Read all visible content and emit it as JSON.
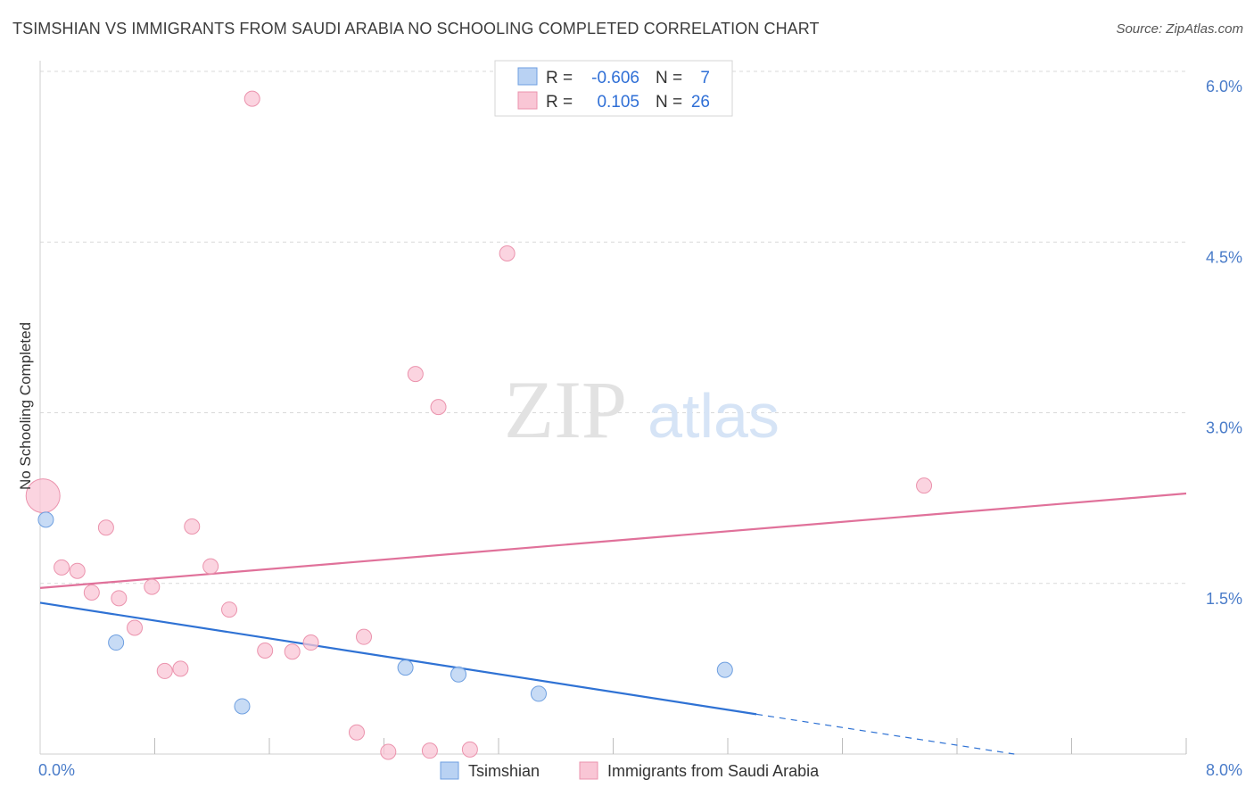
{
  "title": "TSIMSHIAN VS IMMIGRANTS FROM SAUDI ARABIA NO SCHOOLING COMPLETED CORRELATION CHART",
  "source": "Source: ZipAtlas.com",
  "watermark": {
    "zip": "ZIP",
    "atlas": "atlas"
  },
  "colors": {
    "blue_fill": "#b9d2f3",
    "blue_stroke": "#6e9fe0",
    "blue_line": "#2f72d4",
    "pink_fill": "#f9c6d5",
    "pink_stroke": "#eb93ad",
    "pink_line": "#e0719a",
    "grid": "#d9d9d9",
    "tick_text": "#4a7cc9"
  },
  "chart_data": {
    "type": "scatter",
    "xlabel": "",
    "ylabel": "No Schooling Completed",
    "xlim": [
      0,
      8.0
    ],
    "ylim": [
      0,
      6.0
    ],
    "x_tick_labels": [
      "0.0%",
      "8.0%"
    ],
    "y_ticks": [
      1.5,
      3.0,
      4.5,
      6.0
    ],
    "y_tick_labels": [
      "1.5%",
      "3.0%",
      "4.5%",
      "6.0%"
    ],
    "legend": {
      "rows": [
        {
          "r_label": "R =",
          "r_value": "-0.606",
          "n_label": "N =",
          "n_value": "7"
        },
        {
          "r_label": "R =",
          "r_value": "0.105",
          "n_label": "N =",
          "n_value": "26"
        }
      ]
    },
    "series": [
      {
        "name": "Tsimshian",
        "points": [
          [
            0.04,
            2.06
          ],
          [
            0.53,
            0.98
          ],
          [
            1.41,
            0.42
          ],
          [
            2.55,
            0.76
          ],
          [
            2.92,
            0.7
          ],
          [
            3.48,
            0.53
          ],
          [
            4.78,
            0.74
          ]
        ],
        "trend": {
          "x0": 0.0,
          "y0": 1.33,
          "x1": 5.0,
          "y1": 0.35,
          "dash_x1": 6.8,
          "dash_y1": 0.0
        }
      },
      {
        "name": "Immigrants from Saudi Arabia",
        "points": [
          [
            0.02,
            2.27,
            "big"
          ],
          [
            0.46,
            1.99
          ],
          [
            1.06,
            2.0
          ],
          [
            0.15,
            1.64
          ],
          [
            0.26,
            1.61
          ],
          [
            0.36,
            1.42
          ],
          [
            0.55,
            1.37
          ],
          [
            0.78,
            1.47
          ],
          [
            1.19,
            1.65
          ],
          [
            0.66,
            1.11
          ],
          [
            1.32,
            1.27
          ],
          [
            0.87,
            0.73
          ],
          [
            0.98,
            0.75
          ],
          [
            1.57,
            0.91
          ],
          [
            1.76,
            0.9
          ],
          [
            1.89,
            0.98
          ],
          [
            2.26,
            1.03
          ],
          [
            1.48,
            5.76
          ],
          [
            3.26,
            4.4
          ],
          [
            2.62,
            3.34
          ],
          [
            2.78,
            3.05
          ],
          [
            6.17,
            2.36
          ],
          [
            2.21,
            0.19
          ],
          [
            2.43,
            0.02
          ],
          [
            2.72,
            0.03
          ],
          [
            3.0,
            0.04
          ]
        ],
        "trend": {
          "x0": 0.0,
          "y0": 1.46,
          "x1": 8.0,
          "y1": 2.29
        }
      }
    ]
  }
}
